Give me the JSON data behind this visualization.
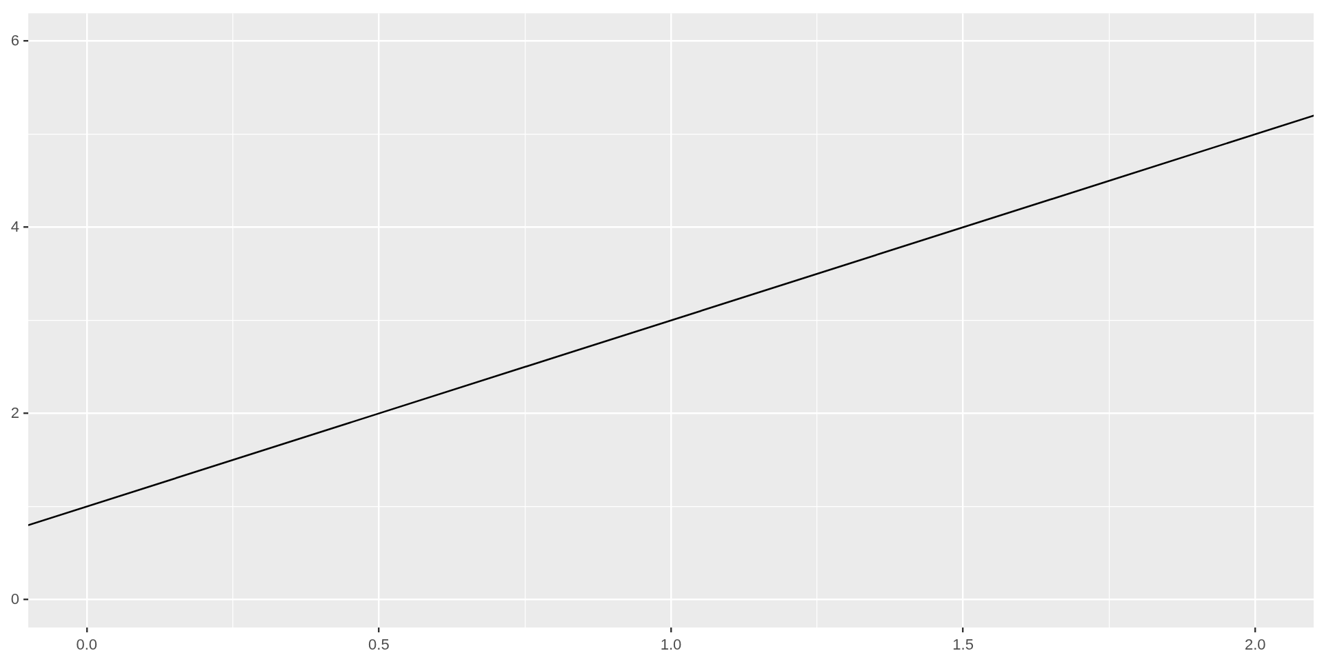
{
  "chart_data": {
    "type": "line",
    "x": [
      -0.1,
      2.1
    ],
    "values": [
      0.8,
      5.2
    ],
    "color": "#000000",
    "marker": "none",
    "line_style": "solid",
    "xlim": [
      -0.1,
      2.1
    ],
    "ylim": [
      -0.3,
      6.3
    ],
    "xticks": [
      {
        "value": 0,
        "label": "0.0"
      },
      {
        "value": 0.25,
        "label": null
      },
      0.5,
      {
        "value": 0.75,
        "label": null
      },
      {
        "value": 1,
        "label": "1.0"
      },
      {
        "value": 1.25,
        "label": null
      },
      1.5,
      {
        "value": 1.75,
        "label": null
      },
      {
        "value": 2,
        "label": "2.0"
      }
    ],
    "yticks": [
      0,
      {
        "value": 1,
        "label": null
      },
      2,
      {
        "value": 3,
        "label": null
      },
      4,
      {
        "value": 5,
        "label": null
      },
      6
    ],
    "grid": true
  }
}
